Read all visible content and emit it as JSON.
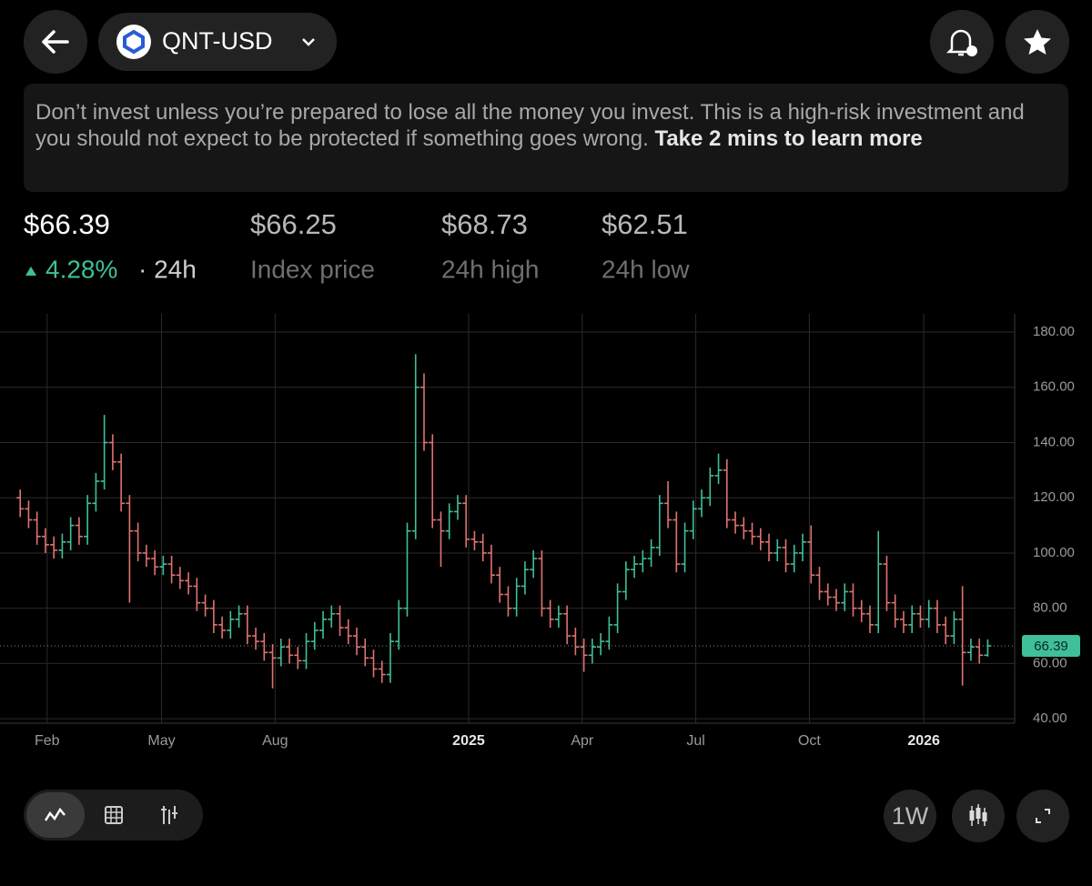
{
  "header": {
    "ticker": "QNT-USD"
  },
  "disclaimer": {
    "text": "Don’t invest unless you’re prepared to lose all the money you invest. This is a high-risk investment and you should not expect to be protected if something goes wrong.",
    "link": "Take 2 mins to learn more"
  },
  "price": {
    "value": "$66.39",
    "change": "4.28%",
    "period": "· 24h"
  },
  "stats": [
    {
      "value": "$66.25",
      "label": "Index price"
    },
    {
      "value": "$68.73",
      "label": "24h high"
    },
    {
      "value": "$62.51",
      "label": "24h low"
    }
  ],
  "toolbar": {
    "interval": "1W"
  },
  "chart_data": {
    "type": "ohlc",
    "up_color": "#3fbf9a",
    "down_color": "#e0736e",
    "grid": true,
    "xlim": [
      -2.4,
      118.2
    ],
    "ylim": [
      38.4,
      186.6
    ],
    "xticks": [
      {
        "value": 3.2,
        "label": "Feb"
      },
      {
        "value": 16.8,
        "label": "May"
      },
      {
        "value": 30.3,
        "label": "Aug"
      },
      {
        "value": 53.3,
        "label": "2025"
      },
      {
        "value": 66.8,
        "label": "Apr"
      },
      {
        "value": 80.3,
        "label": "Jul"
      },
      {
        "value": 93.8,
        "label": "Oct"
      },
      {
        "value": 107.4,
        "label": "2026"
      }
    ],
    "yticks": [
      {
        "value": 40,
        "label": "40.00"
      },
      {
        "value": 60,
        "label": "60.00"
      },
      {
        "value": 80,
        "label": "80.00"
      },
      {
        "value": 100,
        "label": "100.00"
      },
      {
        "value": 120,
        "label": "120.00"
      },
      {
        "value": 140,
        "label": "140.00"
      },
      {
        "value": 160,
        "label": "160.00"
      },
      {
        "value": 180,
        "label": "180.00"
      }
    ],
    "open": [
      120,
      116,
      112,
      106,
      103,
      101,
      104,
      110,
      106,
      118,
      126,
      140,
      133,
      118,
      108,
      100,
      98,
      95,
      96,
      92,
      90,
      88,
      82,
      80,
      74,
      72,
      76,
      78,
      70,
      68,
      64,
      62,
      66,
      63,
      61,
      68,
      72,
      76,
      78,
      73,
      70,
      66,
      62,
      58,
      56,
      68,
      80,
      108,
      160,
      140,
      112,
      108,
      115,
      118,
      105,
      104,
      100,
      92,
      85,
      80,
      88,
      94,
      98,
      80,
      76,
      78,
      70,
      66,
      63,
      66,
      68,
      74,
      86,
      94,
      96,
      98,
      102,
      118,
      112,
      96,
      108,
      116,
      120,
      128,
      130,
      112,
      110,
      108,
      106,
      104,
      100,
      102,
      96,
      100,
      104,
      92,
      86,
      84,
      82,
      86,
      80,
      78,
      74,
      96,
      82,
      76,
      74,
      78,
      76,
      80,
      74,
      70,
      76,
      64,
      66,
      63
    ],
    "high": [
      123,
      119,
      115,
      109,
      106,
      107,
      113,
      113,
      121,
      129,
      150,
      143,
      136,
      121,
      111,
      103,
      101,
      99,
      99,
      95,
      93,
      91,
      85,
      83,
      77,
      79,
      81,
      81,
      73,
      71,
      67,
      69,
      69,
      66,
      71,
      75,
      79,
      81,
      81,
      76,
      73,
      69,
      65,
      61,
      71,
      83,
      111,
      172,
      165,
      143,
      115,
      118,
      121,
      121,
      108,
      107,
      103,
      95,
      88,
      91,
      97,
      101,
      101,
      83,
      81,
      81,
      73,
      69,
      69,
      71,
      77,
      89,
      97,
      99,
      101,
      105,
      121,
      126,
      115,
      111,
      119,
      123,
      131,
      136,
      134,
      115,
      113,
      111,
      109,
      107,
      105,
      105,
      103,
      107,
      110,
      95,
      89,
      87,
      89,
      89,
      83,
      81,
      108,
      99,
      85,
      79,
      81,
      81,
      83,
      83,
      77,
      79,
      88,
      69,
      69,
      68.73
    ],
    "low": [
      113,
      109,
      103,
      100,
      98,
      98,
      101,
      103,
      103,
      115,
      123,
      130,
      115,
      82,
      97,
      95,
      92,
      92,
      89,
      87,
      85,
      79,
      77,
      71,
      69,
      69,
      73,
      67,
      65,
      61,
      51,
      59,
      60,
      58,
      58,
      65,
      69,
      73,
      70,
      67,
      63,
      59,
      55,
      53,
      53,
      65,
      77,
      105,
      137,
      109,
      95,
      105,
      112,
      102,
      101,
      97,
      89,
      82,
      77,
      77,
      85,
      91,
      77,
      73,
      73,
      67,
      63,
      57,
      60,
      63,
      65,
      71,
      83,
      91,
      93,
      95,
      99,
      109,
      93,
      93,
      105,
      113,
      117,
      125,
      109,
      107,
      105,
      103,
      101,
      97,
      97,
      93,
      93,
      97,
      89,
      83,
      81,
      79,
      79,
      77,
      75,
      71,
      71,
      79,
      73,
      71,
      71,
      73,
      73,
      71,
      67,
      67,
      52,
      61,
      60,
      62.51
    ],
    "close": [
      116,
      112,
      106,
      103,
      101,
      104,
      110,
      106,
      118,
      126,
      140,
      133,
      118,
      108,
      100,
      98,
      95,
      96,
      92,
      90,
      88,
      82,
      80,
      74,
      72,
      76,
      78,
      70,
      68,
      64,
      62,
      66,
      63,
      61,
      68,
      72,
      76,
      78,
      73,
      70,
      66,
      62,
      58,
      56,
      68,
      80,
      108,
      160,
      140,
      112,
      108,
      115,
      118,
      105,
      104,
      100,
      92,
      85,
      80,
      88,
      94,
      98,
      80,
      76,
      78,
      70,
      66,
      63,
      66,
      68,
      74,
      86,
      94,
      96,
      98,
      102,
      118,
      112,
      96,
      108,
      116,
      120,
      128,
      130,
      112,
      110,
      108,
      106,
      104,
      100,
      102,
      96,
      100,
      104,
      92,
      86,
      84,
      82,
      86,
      80,
      78,
      74,
      96,
      82,
      76,
      74,
      78,
      76,
      80,
      74,
      70,
      76,
      64,
      66,
      63,
      66.39
    ]
  }
}
